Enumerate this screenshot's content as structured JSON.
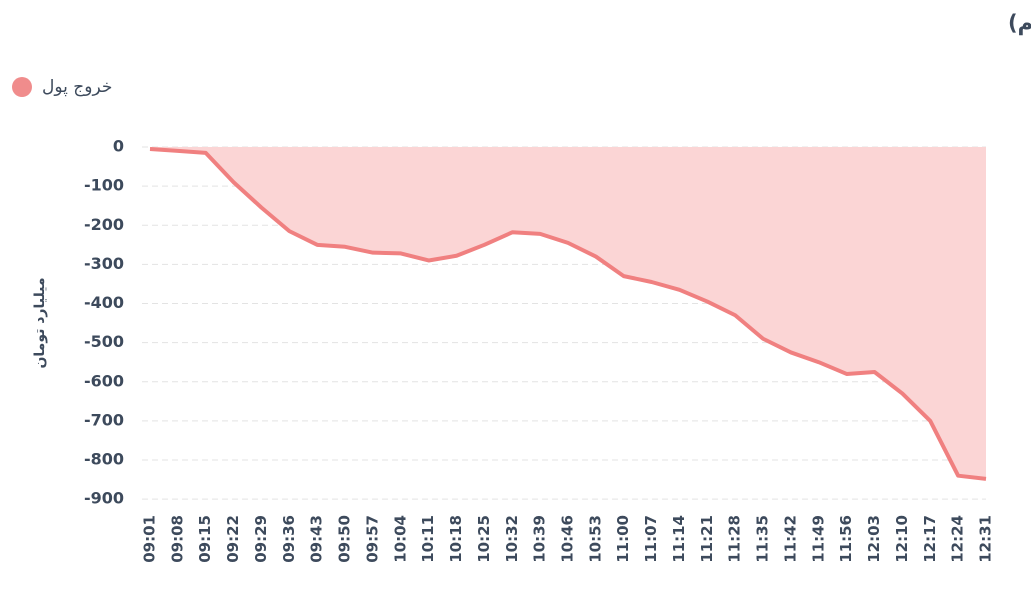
{
  "chart_data": {
    "type": "area",
    "title": "روند تغییر مالکیت حقیقی (سهام و حق تقدم)",
    "y_label": "میلیارد تومان",
    "categories": [
      "09:01",
      "09:08",
      "09:15",
      "09:22",
      "09:29",
      "09:36",
      "09:43",
      "09:50",
      "09:57",
      "10:04",
      "10:11",
      "10:18",
      "10:25",
      "10:32",
      "10:39",
      "10:46",
      "10:53",
      "11:00",
      "11:07",
      "11:14",
      "11:21",
      "11:28",
      "11:35",
      "11:42",
      "11:49",
      "11:56",
      "12:03",
      "12:10",
      "12:17",
      "12:24",
      "12:31"
    ],
    "series": [
      {
        "name": "خروج پول",
        "color": "#f08080",
        "fill": "#fbd5d5",
        "values": [
          -5,
          -10,
          -15,
          -90,
          -155,
          -215,
          -250,
          -255,
          -270,
          -272,
          -290,
          -278,
          -250,
          -218,
          -222,
          -245,
          -280,
          -330,
          -345,
          -365,
          -395,
          -430,
          -490,
          -525,
          -550,
          -580,
          -575,
          -630,
          -700,
          -840,
          -848
        ]
      }
    ],
    "ylim": [
      -920,
      0
    ],
    "yticks": [
      0,
      -100,
      -200,
      -300,
      -400,
      -500,
      -600,
      -700,
      -800,
      -900
    ],
    "grid": true
  }
}
